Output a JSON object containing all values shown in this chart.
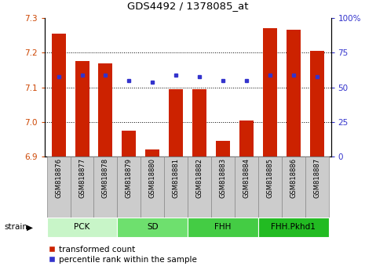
{
  "title": "GDS4492 / 1378085_at",
  "samples": [
    "GSM818876",
    "GSM818877",
    "GSM818878",
    "GSM818879",
    "GSM818880",
    "GSM818881",
    "GSM818882",
    "GSM818883",
    "GSM818884",
    "GSM818885",
    "GSM818886",
    "GSM818887"
  ],
  "red_values": [
    7.255,
    7.175,
    7.17,
    6.975,
    6.92,
    7.095,
    7.095,
    6.945,
    7.005,
    7.27,
    7.265,
    7.205
  ],
  "blue_values": [
    7.13,
    7.135,
    7.135,
    7.12,
    7.115,
    7.135,
    7.13,
    7.12,
    7.12,
    7.135,
    7.135,
    7.13
  ],
  "y_min": 6.9,
  "y_max": 7.3,
  "y_ticks_left": [
    6.9,
    7.0,
    7.1,
    7.2,
    7.3
  ],
  "y_ticks_right": [
    0,
    25,
    50,
    75,
    100
  ],
  "groups": [
    {
      "label": "PCK",
      "start": 0,
      "end": 3,
      "color": "#c8f5c8"
    },
    {
      "label": "SD",
      "start": 3,
      "end": 6,
      "color": "#6ee06e"
    },
    {
      "label": "FHH",
      "start": 6,
      "end": 9,
      "color": "#44cc44"
    },
    {
      "label": "FHH.Pkhd1",
      "start": 9,
      "end": 12,
      "color": "#22bb22"
    }
  ],
  "bar_color": "#cc2200",
  "dot_color": "#3333cc",
  "bar_bottom": 6.9,
  "legend_red": "transformed count",
  "legend_blue": "percentile rank within the sample",
  "left_tick_color": "#cc4400",
  "right_tick_color": "#3333cc",
  "grid_color": "#000000",
  "label_box_color": "#cccccc",
  "label_box_border": "#888888"
}
